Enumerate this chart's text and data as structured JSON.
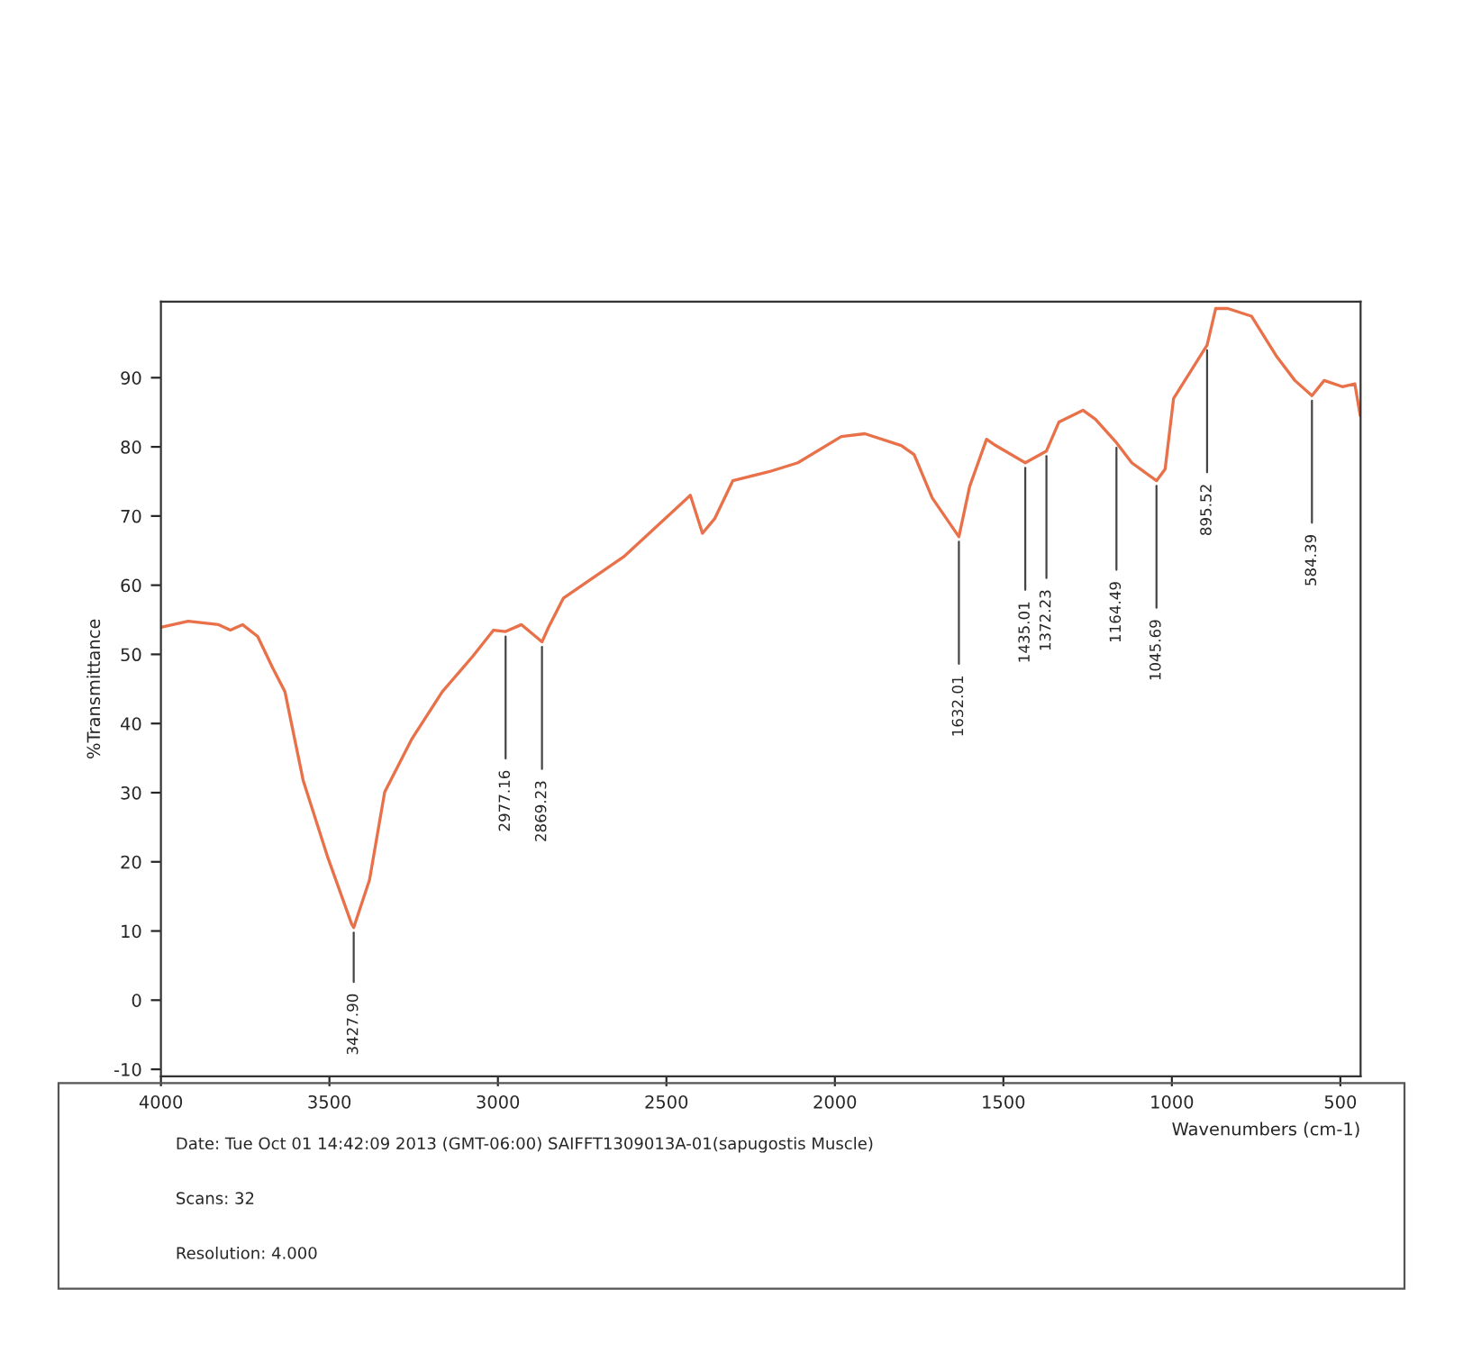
{
  "chart_data": {
    "type": "line",
    "xlabel": "Wavenumbers (cm-1)",
    "ylabel": "%Transmittance",
    "xlim": [
      4000,
      440
    ],
    "ylim": [
      -11,
      101
    ],
    "xticks": [
      4000,
      3500,
      3000,
      2500,
      2000,
      1500,
      1000,
      500
    ],
    "yticks": [
      -10,
      0,
      10,
      20,
      30,
      40,
      50,
      60,
      70,
      80,
      90
    ],
    "grid": false,
    "legend": false,
    "marker": "none",
    "line_style": "solid",
    "series": [
      {
        "color": "#e8714a",
        "x": [
          4000,
          3919,
          3829,
          3794,
          3758,
          3713,
          3668,
          3632,
          3578,
          3506,
          3434,
          3427.9,
          3381,
          3336,
          3255,
          3165,
          3075,
          3013,
          2977.16,
          2930,
          2869.23,
          2850,
          2806,
          2627,
          2429,
          2393,
          2357,
          2303,
          2196,
          2110,
          1981,
          1911,
          1803,
          1765,
          1711,
          1632.01,
          1600,
          1550,
          1523,
          1435.01,
          1372.23,
          1335,
          1264,
          1227,
          1164.49,
          1119,
          1045.69,
          1020,
          995,
          895.52,
          870,
          834,
          764,
          688,
          635,
          584.39,
          548,
          494,
          457,
          441
        ],
        "values": [
          53.9,
          54.8,
          54.3,
          53.5,
          54.3,
          52.6,
          48.0,
          44.6,
          31.8,
          20.8,
          11.0,
          10.5,
          17.4,
          30.1,
          37.8,
          44.6,
          49.7,
          53.5,
          53.3,
          54.3,
          51.8,
          53.9,
          58.1,
          64.1,
          73.0,
          67.5,
          69.6,
          75.1,
          76.4,
          77.7,
          81.5,
          81.9,
          80.2,
          78.9,
          72.6,
          67.0,
          74.3,
          81.1,
          80.2,
          77.7,
          79.4,
          83.6,
          85.3,
          84.0,
          80.6,
          77.7,
          75.1,
          76.8,
          87.0,
          94.7,
          100.0,
          100.0,
          98.9,
          93.0,
          89.6,
          87.4,
          89.6,
          88.7,
          89.1,
          84.5
        ]
      }
    ],
    "annotations": [
      {
        "text": "3427.90",
        "x": 3427.9,
        "y": 10.5
      },
      {
        "text": "2977.16",
        "x": 2977.16,
        "y": 53.3
      },
      {
        "text": "2869.23",
        "x": 2869.23,
        "y": 51.8
      },
      {
        "text": "1632.01",
        "x": 1632.01,
        "y": 67.0
      },
      {
        "text": "1435.01",
        "x": 1435.01,
        "y": 77.7
      },
      {
        "text": "1372.23",
        "x": 1372.23,
        "y": 79.4
      },
      {
        "text": "1164.49",
        "x": 1164.49,
        "y": 80.6
      },
      {
        "text": "1045.69",
        "x": 1045.69,
        "y": 75.1
      },
      {
        "text": "895.52",
        "x": 895.52,
        "y": 94.7
      },
      {
        "text": "584.39",
        "x": 584.39,
        "y": 87.4
      },
      "Date: Tue Oct 01 14:42:09 2013 (GMT-06:00) SAIFFT1309013A-01(sapugostis Muscle)",
      "Scans: 32",
      "Resolution: 4.000"
    ]
  }
}
